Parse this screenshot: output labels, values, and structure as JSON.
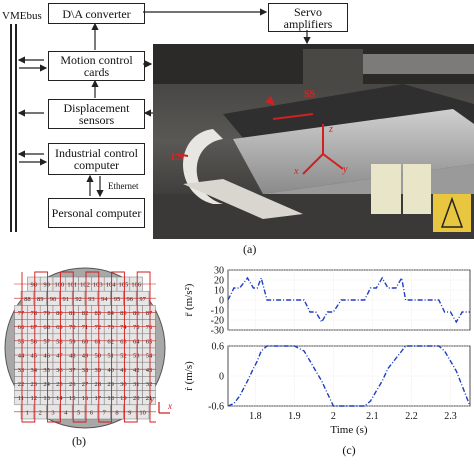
{
  "panel_a": {
    "caption": "(a)",
    "bus_label": "VMEbus",
    "boxes": {
      "converter": "D\\A converter",
      "servo": "Servo amplifiers",
      "motion": "Motion control cards",
      "displacement": "Displacement sensors",
      "industrial": "Industrial control computer",
      "pc": "Personal computer"
    },
    "ethernet": "Ethernet",
    "photo_labels": {
      "ss": "SS",
      "ls": "LS",
      "z": "z",
      "x": "x",
      "y": "y"
    }
  },
  "panel_b": {
    "caption": "(b)",
    "axis_x": "x",
    "axis_y": "y",
    "grid_numbers": [
      [
        98,
        99,
        100,
        101,
        102,
        103,
        104,
        105,
        106
      ],
      [
        88,
        89,
        90,
        91,
        92,
        93,
        94,
        95,
        96,
        97
      ],
      [
        77,
        78,
        79,
        80,
        81,
        82,
        83,
        84,
        85,
        86,
        87
      ],
      [
        66,
        67,
        68,
        69,
        70,
        71,
        72,
        73,
        74,
        75,
        76
      ],
      [
        55,
        56,
        57,
        58,
        59,
        60,
        61,
        62,
        63,
        64,
        65
      ],
      [
        44,
        45,
        46,
        47,
        48,
        49,
        50,
        51,
        52,
        53,
        54
      ],
      [
        33,
        34,
        35,
        36,
        37,
        38,
        39,
        40,
        41,
        42,
        43
      ],
      [
        22,
        23,
        24,
        25,
        26,
        27,
        28,
        29,
        30,
        31,
        32
      ],
      [
        11,
        12,
        13,
        14,
        15,
        16,
        17,
        18,
        19,
        20,
        21
      ],
      [
        1,
        2,
        3,
        4,
        5,
        6,
        7,
        8,
        9,
        10
      ]
    ]
  },
  "panel_c": {
    "caption": "(c)",
    "xlabel": "Time (s)",
    "accel_ylabel": "r̈ (m/s²)",
    "vel_ylabel": "ṙ (m/s)",
    "accel_ticks": [
      "30",
      "20",
      "10",
      "0",
      "-10",
      "-20",
      "-30"
    ],
    "vel_ticks": [
      "0.6",
      "0",
      "-0.6"
    ],
    "x_ticks": [
      "1.8",
      "1.9",
      "2",
      "2.1",
      "2.2",
      "2.3"
    ]
  },
  "chart_data": [
    {
      "type": "line",
      "title": "",
      "xlabel": "",
      "ylabel": "r̈ (m/s²)",
      "xlim": [
        1.73,
        2.35
      ],
      "ylim": [
        -30,
        30
      ],
      "grid": true,
      "color": "#1f3fbf",
      "series": [
        {
          "x": [
            1.73,
            1.745,
            1.76,
            1.78,
            1.795,
            1.805,
            1.815,
            1.83,
            1.85,
            1.875,
            1.9,
            1.925,
            1.94,
            1.955,
            1.97,
            1.985,
            2.0,
            2.02,
            2.05,
            2.08,
            2.095,
            2.11,
            2.125,
            2.14,
            2.16,
            2.175,
            2.185,
            2.2,
            2.225,
            2.25,
            2.27,
            2.285,
            2.3,
            2.315,
            2.33,
            2.35
          ],
          "values": [
            0,
            12,
            12,
            22,
            12,
            12,
            22,
            0,
            0,
            0,
            0,
            0,
            -12,
            -12,
            -22,
            -12,
            -12,
            0,
            0,
            0,
            12,
            12,
            22,
            12,
            12,
            22,
            0,
            0,
            0,
            0,
            0,
            -12,
            -12,
            -22,
            -12,
            -12
          ]
        }
      ]
    },
    {
      "type": "line",
      "title": "",
      "xlabel": "Time (s)",
      "ylabel": "ṙ (m/s)",
      "xlim": [
        1.73,
        2.35
      ],
      "ylim": [
        -0.6,
        0.6
      ],
      "grid": true,
      "color": "#1f3fbf",
      "series": [
        {
          "x": [
            1.73,
            1.745,
            1.76,
            1.78,
            1.795,
            1.805,
            1.815,
            1.83,
            1.875,
            1.9,
            1.925,
            1.94,
            1.955,
            1.97,
            1.985,
            2.0,
            2.04,
            2.08,
            2.095,
            2.11,
            2.125,
            2.14,
            2.16,
            2.175,
            2.185,
            2.2,
            2.235,
            2.27,
            2.285,
            2.3,
            2.315,
            2.33,
            2.35
          ],
          "values": [
            -0.6,
            -0.55,
            -0.4,
            -0.1,
            0.15,
            0.3,
            0.5,
            0.6,
            0.6,
            0.6,
            0.5,
            0.3,
            0.1,
            -0.1,
            -0.35,
            -0.6,
            -0.6,
            -0.6,
            -0.5,
            -0.3,
            -0.1,
            0.15,
            0.35,
            0.5,
            0.6,
            0.6,
            0.6,
            0.6,
            0.5,
            0.3,
            0.1,
            -0.2,
            -0.6
          ]
        }
      ]
    }
  ]
}
